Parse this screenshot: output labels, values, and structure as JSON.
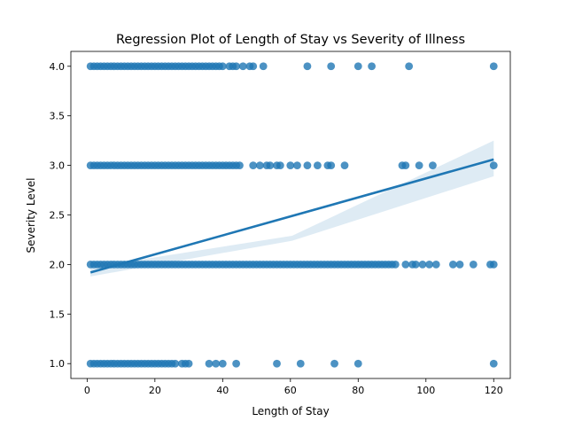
{
  "chart_data": {
    "type": "scatter",
    "title": "Regression Plot of Length of Stay vs Severity of Illness",
    "xlabel": "Length of Stay",
    "ylabel": "Severity Level",
    "xlim": [
      -4.8,
      124.9
    ],
    "ylim": [
      0.85,
      4.15
    ],
    "xticks": [
      0,
      20,
      40,
      60,
      80,
      100,
      120
    ],
    "xtick_labels": [
      "0",
      "20",
      "40",
      "60",
      "80",
      "100",
      "120"
    ],
    "yticks": [
      1.0,
      1.5,
      2.0,
      2.5,
      3.0,
      3.5,
      4.0
    ],
    "ytick_labels": [
      "1.0",
      "1.5",
      "2.0",
      "2.5",
      "3.0",
      "3.5",
      "4.0"
    ],
    "grid": false,
    "point_color": "#1f77b4",
    "band_color": "#1f77b4",
    "series": [
      {
        "severity": 1.0,
        "dense_range": [
          1,
          23
        ],
        "x": [
          24,
          25,
          26,
          28,
          29,
          30,
          36,
          38,
          40,
          44,
          56,
          63,
          73,
          80,
          120
        ]
      },
      {
        "severity": 2.0,
        "dense_range": [
          1,
          90
        ],
        "x": [
          91,
          94,
          96,
          97,
          99,
          101,
          103,
          108,
          110,
          114,
          119,
          120
        ]
      },
      {
        "severity": 3.0,
        "dense_range": [
          1,
          45
        ],
        "x": [
          49,
          51,
          53,
          54,
          56,
          57,
          60,
          62,
          65,
          68,
          71,
          72,
          76,
          93,
          94,
          98,
          102,
          120
        ]
      },
      {
        "severity": 4.0,
        "dense_range": [
          1,
          40
        ],
        "x": [
          42,
          43,
          44,
          46,
          48,
          49,
          52,
          65,
          72,
          80,
          84,
          95,
          120
        ]
      }
    ],
    "regression": {
      "x_start": 1,
      "x_end": 120,
      "y_start": 1.92,
      "y_end": 3.06,
      "ci_low_start": 1.88,
      "ci_high_start": 1.97,
      "ci_low_mid": 2.24,
      "ci_high_mid": 2.29,
      "ci_low_end": 2.89,
      "ci_high_end": 3.25
    }
  }
}
